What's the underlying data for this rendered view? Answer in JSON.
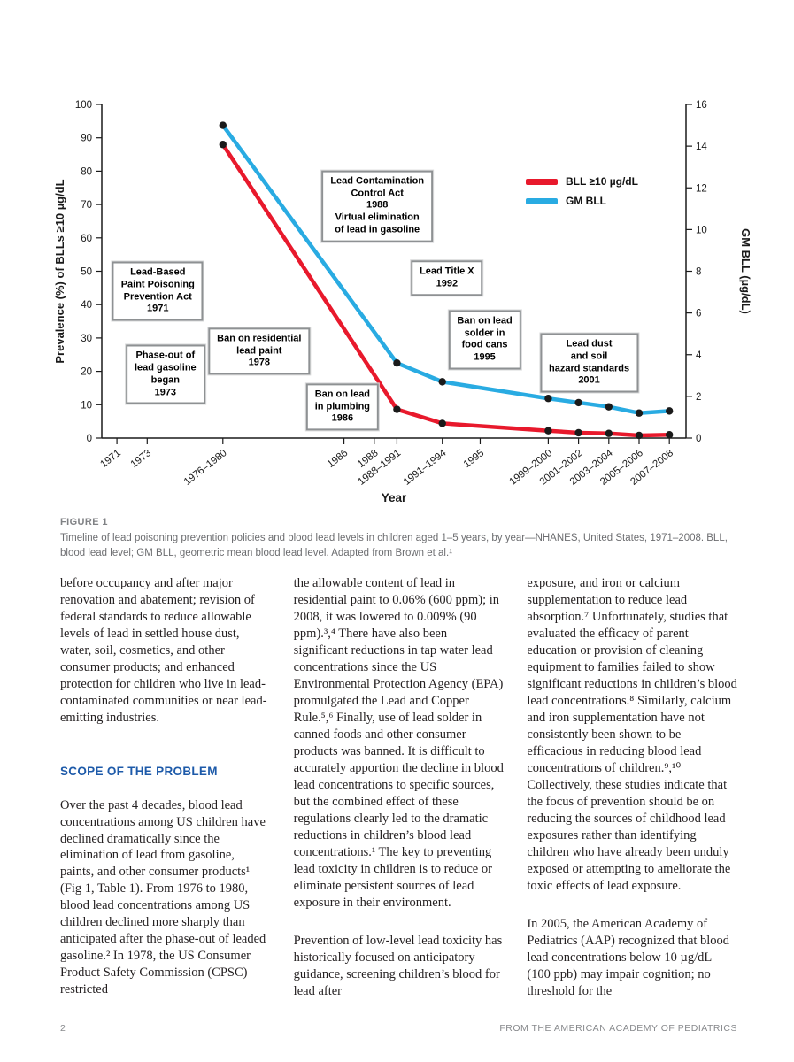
{
  "colors": {
    "accent_red": "#e8192c",
    "accent_cyan": "#29abe2",
    "heading_blue": "#1d5aa9",
    "caption_gray": "#6d6e71",
    "footer_gray": "#87898c",
    "body_text": "#231f20"
  },
  "figure_caption": {
    "label": "FIGURE 1",
    "text": "Timeline of lead poisoning prevention policies and blood lead levels in children aged 1–5 years, by year—NHANES, United States, 1971–2008. BLL, blood lead level; GM BLL, geometric mean blood lead level. Adapted from Brown et al.¹"
  },
  "body": {
    "columns": [
      {
        "blocks": [
          {
            "type": "p",
            "text": "before occupancy and after major renovation and abatement; revision of federal standards to reduce allowable levels of lead in settled house dust, water, soil, cosmetics, and other consumer products; and enhanced protection for children who live in lead-contaminated communities or near lead-emitting industries."
          },
          {
            "type": "h",
            "text": "SCOPE OF THE PROBLEM"
          },
          {
            "type": "p",
            "text": "Over the past 4 decades, blood lead concentrations among US children have declined dramatically since the elimination of lead from gasoline, paints, and other consumer products¹ (Fig 1, Table 1). From 1976 to 1980, blood lead concentrations among US children declined more sharply than anticipated after the phase-out of leaded gasoline.² In 1978, the US Consumer Product Safety Commission (CPSC) restricted"
          }
        ]
      },
      {
        "blocks": [
          {
            "type": "p",
            "text": "the allowable content of lead in residential paint to 0.06% (600 ppm); in 2008, it was lowered to 0.009% (90 ppm).³,⁴ There have also been significant reductions in tap water lead concentrations since the US Environmental Protection Agency (EPA) promulgated the Lead and Copper Rule.⁵,⁶ Finally, use of lead solder in canned foods and other consumer products was banned. It is difficult to accurately apportion the decline in blood lead concentrations to specific sources, but the combined effect of these regulations clearly led to the dramatic reductions in children’s blood lead concentrations.¹ The key to preventing lead toxicity in children is to reduce or eliminate persistent sources of lead exposure in their environment."
          },
          {
            "type": "p",
            "text": "Prevention of low-level lead toxicity has historically focused on anticipatory guidance, screening children’s blood for lead after"
          }
        ]
      },
      {
        "blocks": [
          {
            "type": "p",
            "text": "exposure, and iron or calcium supplementation to reduce lead absorption.⁷ Unfortunately, studies that evaluated the efficacy of parent education or provision of cleaning equipment to families failed to show significant reductions in children’s blood lead concentrations.⁸ Similarly, calcium and iron supplementation have not consistently been shown to be efficacious in reducing blood lead concentrations of children.⁹,¹⁰ Collectively, these studies indicate that the focus of prevention should be on reducing the sources of childhood lead exposures rather than identifying children who have already been unduly exposed or attempting to ameliorate the toxic effects of lead exposure."
          },
          {
            "type": "p",
            "text": "In 2005, the American Academy of Pediatrics (AAP) recognized that blood lead concentrations below 10 µg/dL (100 ppb) may impair cognition; no threshold for the"
          }
        ]
      }
    ]
  },
  "footer": {
    "page_number": "2",
    "source": "FROM THE AMERICAN ACADEMY OF PEDIATRICS"
  },
  "chart_data": {
    "type": "line",
    "title": "",
    "xlabel": "Year",
    "ylabel_left": "Prevalence (%) of BLLs ≥10 µg/dL",
    "ylabel_right": "GM BLL (µg/dL)",
    "ylim_left": [
      0,
      100
    ],
    "ylim_right": [
      0,
      16
    ],
    "yticks_left": [
      0,
      10,
      20,
      30,
      40,
      50,
      60,
      70,
      80,
      90,
      100
    ],
    "yticks_right": [
      0,
      2,
      4,
      6,
      8,
      10,
      12,
      14,
      16
    ],
    "grid": false,
    "legend_position": "upper-right",
    "xticks": [
      {
        "label": "1971",
        "x": 1971
      },
      {
        "label": "1973",
        "x": 1973
      },
      {
        "label": "1976–1980",
        "x": 1978
      },
      {
        "label": "1986",
        "x": 1986
      },
      {
        "label": "1988",
        "x": 1988
      },
      {
        "label": "1988–1991",
        "x": 1989.5
      },
      {
        "label": "1991–1994",
        "x": 1992.5
      },
      {
        "label": "1995",
        "x": 1995
      },
      {
        "label": "1999–2000",
        "x": 1999.5
      },
      {
        "label": "2001–2002",
        "x": 2001.5
      },
      {
        "label": "2003–2004",
        "x": 2003.5
      },
      {
        "label": "2005–2006",
        "x": 2005.5
      },
      {
        "label": "2007–2008",
        "x": 2007.5
      }
    ],
    "series": [
      {
        "name": "BLL ≥10 µg/dL",
        "axis": "left",
        "color": "#e8192c",
        "points": [
          {
            "label": "1976–1980",
            "x": 1978,
            "y": 88
          },
          {
            "label": "1988–1991",
            "x": 1989.5,
            "y": 8.6
          },
          {
            "label": "1991–1994",
            "x": 1992.5,
            "y": 4.4
          },
          {
            "label": "1999–2000",
            "x": 1999.5,
            "y": 2.2
          },
          {
            "label": "2001–2002",
            "x": 2001.5,
            "y": 1.6
          },
          {
            "label": "2003–2004",
            "x": 2003.5,
            "y": 1.4
          },
          {
            "label": "2005–2006",
            "x": 2005.5,
            "y": 0.8
          },
          {
            "label": "2007–2008",
            "x": 2007.5,
            "y": 1.0
          }
        ]
      },
      {
        "name": "GM BLL",
        "axis": "right",
        "color": "#29abe2",
        "points": [
          {
            "label": "1976–1980",
            "x": 1978,
            "y": 15.0
          },
          {
            "label": "1988–1991",
            "x": 1989.5,
            "y": 3.6
          },
          {
            "label": "1991–1994",
            "x": 1992.5,
            "y": 2.7
          },
          {
            "label": "1999–2000",
            "x": 1999.5,
            "y": 1.9
          },
          {
            "label": "2001–2002",
            "x": 2001.5,
            "y": 1.7
          },
          {
            "label": "2003–2004",
            "x": 2003.5,
            "y": 1.5
          },
          {
            "label": "2005–2006",
            "x": 2005.5,
            "y": 1.2
          },
          {
            "label": "2007–2008",
            "x": 2007.5,
            "y": 1.3
          }
        ]
      }
    ],
    "annotations": [
      {
        "id": "lead-based-paint-poisoning-prevention-act",
        "lines": [
          "Lead-Based",
          "Paint Poisoning",
          "Prevention Act",
          "1971"
        ],
        "x": 1973.7,
        "y": 44
      },
      {
        "id": "phase-out-of-lead-gasoline",
        "lines": [
          "Phase-out of",
          "lead gasoline",
          "began",
          "1973"
        ],
        "x": 1974.2,
        "y": 19
      },
      {
        "id": "ban-on-residential-lead-paint",
        "lines": [
          "Ban on residential",
          "lead paint",
          "1978"
        ],
        "x": 1980.4,
        "y": 26
      },
      {
        "id": "lead-contamination-control-act",
        "lines": [
          "Lead Contamination",
          "Control Act",
          "1988",
          "Virtual elimination",
          "of lead in gasoline"
        ],
        "x": 1988.2,
        "y": 69.5
      },
      {
        "id": "ban-on-lead-in-plumbing",
        "lines": [
          "Ban on lead",
          "in plumbing",
          "1986"
        ],
        "x": 1985.9,
        "y": 9.3
      },
      {
        "id": "lead-title-x",
        "lines": [
          "Lead Title X",
          "1992"
        ],
        "x": 1992.8,
        "y": 48
      },
      {
        "id": "ban-on-lead-solder-in-food-cans",
        "lines": [
          "Ban on lead",
          "solder in",
          "food cans",
          "1995"
        ],
        "x": 1995.3,
        "y": 29.5
      },
      {
        "id": "lead-dust-and-soil-hazard-standards",
        "lines": [
          "Lead dust",
          "and soil",
          "hazard standards",
          "2001"
        ],
        "x": 2002.2,
        "y": 22.5
      }
    ]
  }
}
